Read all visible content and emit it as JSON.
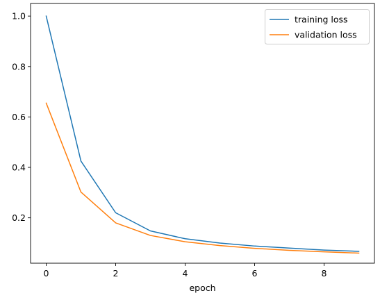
{
  "chart_data": {
    "type": "line",
    "title": "",
    "xlabel": "epoch",
    "ylabel": "",
    "x": [
      0,
      1,
      2,
      3,
      4,
      5,
      6,
      7,
      8,
      9
    ],
    "xlim": [
      -0.45,
      9.45
    ],
    "ylim": [
      0.02,
      1.05
    ],
    "xticks": [
      0,
      2,
      4,
      6,
      8
    ],
    "yticks": [
      0.2,
      0.4,
      0.6,
      0.8,
      1.0
    ],
    "xtick_labels": [
      "0",
      "2",
      "4",
      "6",
      "8"
    ],
    "ytick_labels": [
      "0.2",
      "0.4",
      "0.6",
      "0.8",
      "1.0"
    ],
    "grid": false,
    "legend_position": "top-right",
    "series": [
      {
        "name": "training loss",
        "color": "#1f77b4",
        "values": [
          1.0,
          0.425,
          0.22,
          0.148,
          0.117,
          0.1,
          0.088,
          0.08,
          0.072,
          0.067
        ]
      },
      {
        "name": "validation loss",
        "color": "#ff7f0e",
        "values": [
          0.655,
          0.302,
          0.18,
          0.13,
          0.105,
          0.09,
          0.079,
          0.071,
          0.065,
          0.06
        ]
      }
    ]
  }
}
